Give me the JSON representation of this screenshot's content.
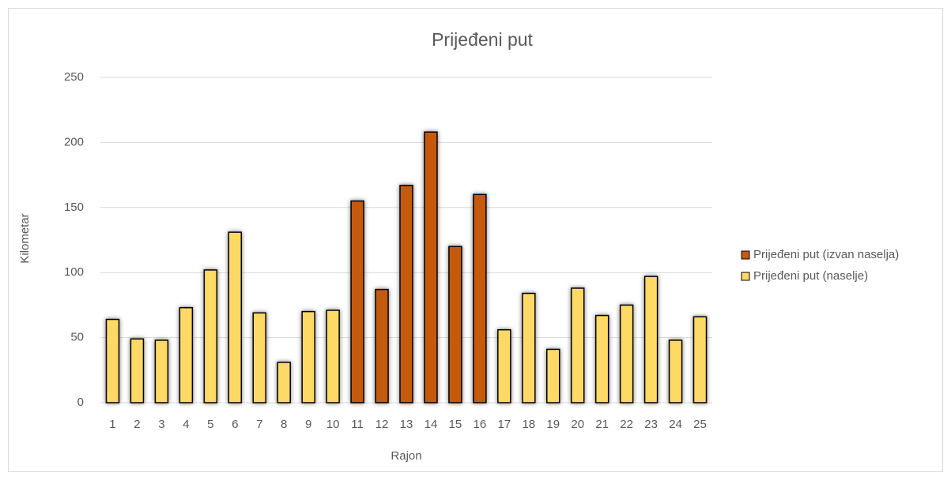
{
  "chart_data": {
    "type": "bar",
    "title": "Prijeđeni put",
    "x_label": "Rajon",
    "y_label": "Kilometar",
    "categories": [
      "1",
      "2",
      "3",
      "4",
      "5",
      "6",
      "7",
      "8",
      "9",
      "10",
      "11",
      "12",
      "13",
      "14",
      "15",
      "16",
      "17",
      "18",
      "19",
      "20",
      "21",
      "22",
      "23",
      "24",
      "25"
    ],
    "series": [
      {
        "name": "Prijeđeni put (izvan naselja)",
        "color": "#c55a11",
        "values": [
          null,
          null,
          null,
          null,
          null,
          null,
          null,
          null,
          null,
          null,
          155,
          87,
          167,
          208,
          120,
          160,
          null,
          null,
          null,
          null,
          null,
          null,
          null,
          null,
          null
        ]
      },
      {
        "name": "Prijeđeni put (naselje)",
        "color": "#ffd966",
        "values": [
          64,
          49,
          48,
          73,
          102,
          131,
          69,
          31,
          70,
          71,
          null,
          null,
          null,
          null,
          null,
          null,
          56,
          84,
          41,
          88,
          67,
          75,
          97,
          48,
          66
        ]
      }
    ],
    "ylim": [
      0,
      250
    ],
    "yticks": [
      0,
      50,
      100,
      150,
      200,
      250
    ],
    "grid": true,
    "legend": "right"
  }
}
